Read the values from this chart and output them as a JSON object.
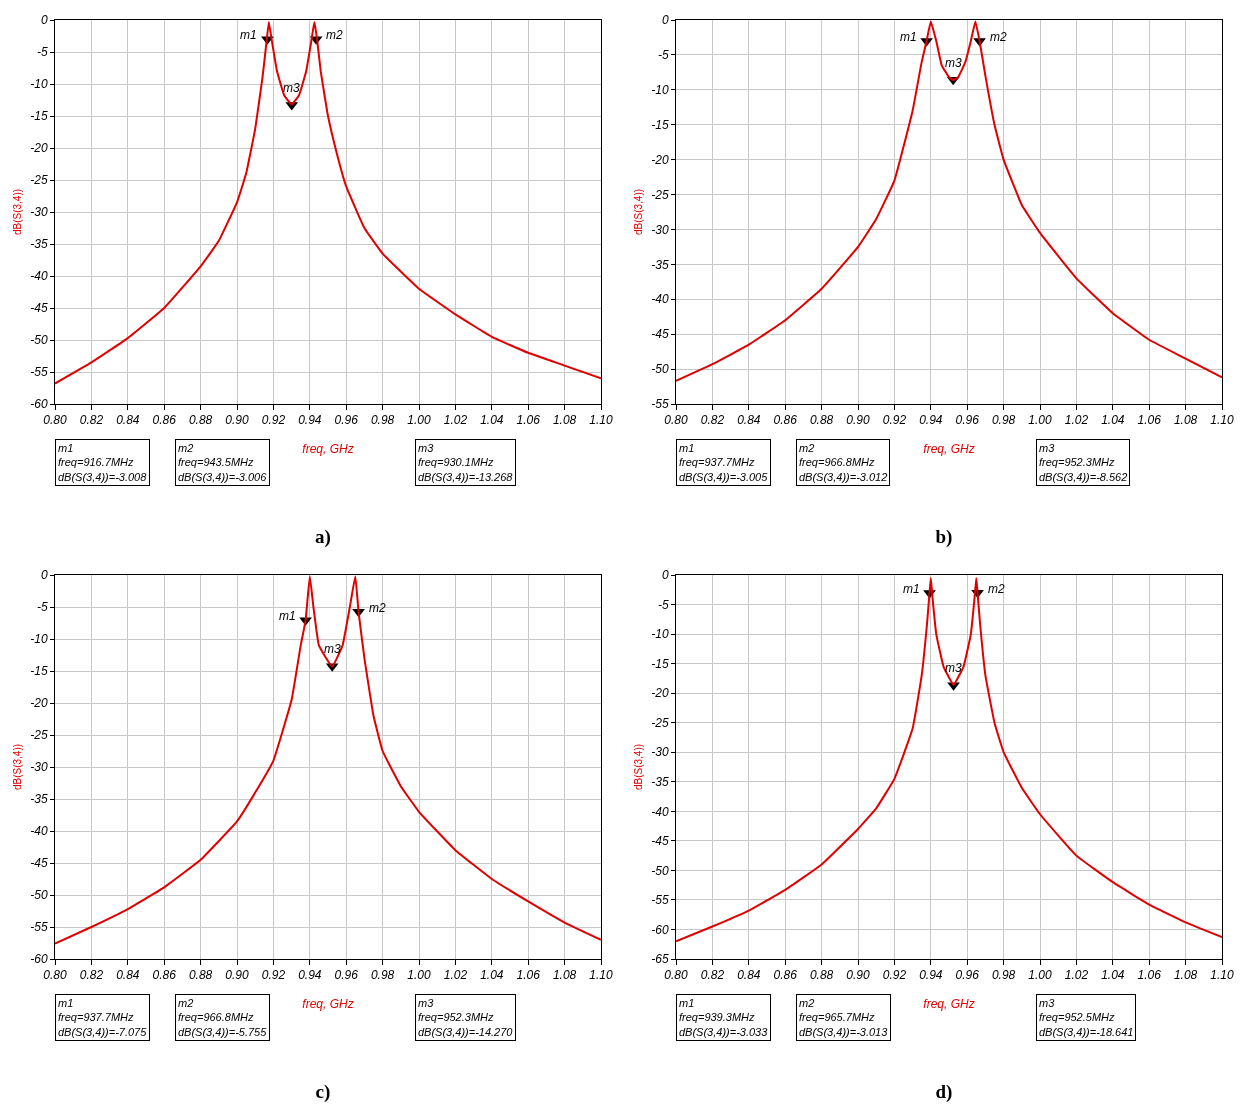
{
  "chart_data": [
    {
      "type": "line",
      "title": "a)",
      "xlabel": "freq, GHz",
      "ylabel": "dB(S(3,4))",
      "x": [
        0.8,
        0.82,
        0.84,
        0.86,
        0.88,
        0.89,
        0.9,
        0.905,
        0.91,
        0.914,
        0.916,
        0.9175,
        0.919,
        0.922,
        0.926,
        0.93,
        0.934,
        0.938,
        0.941,
        0.9425,
        0.944,
        0.946,
        0.95,
        0.955,
        0.96,
        0.97,
        0.98,
        1.0,
        1.02,
        1.04,
        1.06,
        1.08,
        1.1
      ],
      "series": [
        {
          "type": "scatter",
          "color": "#000000",
          "marker": "triangle",
          "x": [
            0.9167,
            0.9435,
            0.9301
          ],
          "values": [
            -3.008,
            -3.006,
            -13.268
          ]
        },
        {
          "color": "#e00000",
          "values": [
            -56.8,
            -53.5,
            -49.7,
            -45,
            -38.5,
            -34.5,
            -28.5,
            -24,
            -17,
            -9,
            -4,
            -0.3,
            -3,
            -8,
            -11.8,
            -13.2,
            -11.8,
            -8,
            -3,
            -0.3,
            -3,
            -8,
            -15,
            -21,
            -26,
            -32.5,
            -36.5,
            -42,
            -46,
            -49.5,
            -52,
            -54,
            -56
          ]
        }
      ],
      "xlim": [
        0.8,
        1.1
      ],
      "xticks": [
        {
          "value": 0.8,
          "label": "0.80"
        },
        {
          "value": 0.82,
          "label": "0.82"
        },
        {
          "value": 0.84,
          "label": "0.84"
        },
        {
          "value": 0.86,
          "label": "0.86"
        },
        {
          "value": 0.88,
          "label": "0.88"
        },
        {
          "value": 0.9,
          "label": "0.90"
        },
        {
          "value": 0.92,
          "label": "0.92"
        },
        {
          "value": 0.94,
          "label": "0.94"
        },
        {
          "value": 0.96,
          "label": "0.96"
        },
        {
          "value": 0.98,
          "label": "0.98"
        },
        {
          "value": 1.0,
          "label": "1.00"
        },
        {
          "value": 1.02,
          "label": "1.02"
        },
        {
          "value": 1.04,
          "label": "1.04"
        },
        {
          "value": 1.06,
          "label": "1.06"
        },
        {
          "value": 1.08,
          "label": "1.08"
        },
        {
          "value": 1.1,
          "label": "1.10"
        }
      ],
      "ylim": [
        -60,
        0
      ],
      "yticks": [
        0,
        -5,
        -10,
        -15,
        -20,
        -25,
        -30,
        -35,
        -40,
        -45,
        -50,
        -55,
        -60
      ],
      "grid": true,
      "annotations": [
        {
          "text": "m1",
          "x": 0.9167,
          "y": -3.008
        },
        {
          "text": "m2",
          "x": 0.9435,
          "y": -3.006
        },
        {
          "text": "m3",
          "x": 0.9301,
          "y": -13.268
        },
        "m1\nfreq=916.7MHz\ndB(S(3,4))=-3.008",
        "m2\nfreq=943.5MHz\ndB(S(3,4))=-3.006",
        "m3\nfreq=930.1MHz\ndB(S(3,4))=-13.268"
      ]
    },
    {
      "type": "line",
      "title": "b)",
      "xlabel": "freq, GHz",
      "ylabel": "dB(S(3,4))",
      "x": [
        0.8,
        0.82,
        0.84,
        0.86,
        0.88,
        0.9,
        0.91,
        0.92,
        0.93,
        0.935,
        0.9377,
        0.94,
        0.943,
        0.946,
        0.95,
        0.9523,
        0.955,
        0.959,
        0.962,
        0.9645,
        0.9668,
        0.97,
        0.975,
        0.98,
        0.99,
        1.0,
        1.02,
        1.04,
        1.06,
        1.08,
        1.1
      ],
      "series": [
        {
          "type": "scatter",
          "color": "#000000",
          "marker": "triangle",
          "x": [
            0.9377,
            0.9668,
            0.9523
          ],
          "values": [
            -3.005,
            -3.012,
            -8.562
          ]
        },
        {
          "color": "#e00000",
          "values": [
            -51.7,
            -49.3,
            -46.5,
            -43,
            -38.5,
            -32.5,
            -28.5,
            -23,
            -13,
            -6,
            -3,
            -0.2,
            -3,
            -6.5,
            -8.2,
            -8.6,
            -8.2,
            -6,
            -3,
            -0.2,
            -3,
            -8,
            -15,
            -20,
            -26.5,
            -30.5,
            -37,
            -42,
            -45.8,
            -48.5,
            -51.2
          ]
        }
      ],
      "xlim": [
        0.8,
        1.1
      ],
      "xticks": [
        {
          "value": 0.8,
          "label": "0.80"
        },
        {
          "value": 0.82,
          "label": "0.82"
        },
        {
          "value": 0.84,
          "label": "0.84"
        },
        {
          "value": 0.86,
          "label": "0.86"
        },
        {
          "value": 0.88,
          "label": "0.88"
        },
        {
          "value": 0.9,
          "label": "0.90"
        },
        {
          "value": 0.92,
          "label": "0.92"
        },
        {
          "value": 0.94,
          "label": "0.94"
        },
        {
          "value": 0.96,
          "label": "0.96"
        },
        {
          "value": 0.98,
          "label": "0.98"
        },
        {
          "value": 1.0,
          "label": "1.00"
        },
        {
          "value": 1.02,
          "label": "1.02"
        },
        {
          "value": 1.04,
          "label": "1.04"
        },
        {
          "value": 1.06,
          "label": "1.06"
        },
        {
          "value": 1.08,
          "label": "1.08"
        },
        {
          "value": 1.1,
          "label": "1.10"
        }
      ],
      "ylim": [
        -55,
        0
      ],
      "yticks": [
        0,
        -5,
        -10,
        -15,
        -20,
        -25,
        -30,
        -35,
        -40,
        -45,
        -50,
        -55
      ],
      "grid": true,
      "annotations": [
        {
          "text": "m1",
          "x": 0.9377,
          "y": -3.005
        },
        {
          "text": "m2",
          "x": 0.9668,
          "y": -3.012
        },
        {
          "text": "m3",
          "x": 0.9523,
          "y": -8.562
        },
        "m1\nfreq=937.7MHz\ndB(S(3,4))=-3.005",
        "m2\nfreq=966.8MHz\ndB(S(3,4))=-3.012",
        "m3\nfreq=952.3MHz\ndB(S(3,4))=-8.562"
      ]
    },
    {
      "type": "line",
      "title": "c)",
      "xlabel": "freq, GHz",
      "ylabel": "dB(S(3,4))",
      "x": [
        0.8,
        0.82,
        0.84,
        0.86,
        0.88,
        0.9,
        0.91,
        0.92,
        0.93,
        0.935,
        0.9377,
        0.94,
        0.942,
        0.945,
        0.9523,
        0.958,
        0.962,
        0.965,
        0.9668,
        0.97,
        0.975,
        0.98,
        0.99,
        1.0,
        1.02,
        1.04,
        1.06,
        1.08,
        1.1
      ],
      "series": [
        {
          "type": "scatter",
          "color": "#000000",
          "marker": "triangle",
          "x": [
            0.9377,
            0.9668,
            0.9523
          ],
          "values": [
            -7.075,
            -5.755,
            -14.27
          ]
        },
        {
          "color": "#e00000",
          "values": [
            -57.6,
            -55,
            -52.2,
            -48.8,
            -44.5,
            -38.5,
            -34,
            -29,
            -19.5,
            -11,
            -7.1,
            -0.2,
            -5,
            -11,
            -14.3,
            -11,
            -5,
            -0.2,
            -5.8,
            -13,
            -22,
            -27.5,
            -33,
            -37,
            -43,
            -47.5,
            -51,
            -54.3,
            -57
          ]
        }
      ],
      "xlim": [
        0.8,
        1.1
      ],
      "xticks": [
        {
          "value": 0.8,
          "label": "0.80"
        },
        {
          "value": 0.82,
          "label": "0.82"
        },
        {
          "value": 0.84,
          "label": "0.84"
        },
        {
          "value": 0.86,
          "label": "0.86"
        },
        {
          "value": 0.88,
          "label": "0.88"
        },
        {
          "value": 0.9,
          "label": "0.90"
        },
        {
          "value": 0.92,
          "label": "0.92"
        },
        {
          "value": 0.94,
          "label": "0.94"
        },
        {
          "value": 0.96,
          "label": "0.96"
        },
        {
          "value": 0.98,
          "label": "0.98"
        },
        {
          "value": 1.0,
          "label": "1.00"
        },
        {
          "value": 1.02,
          "label": "1.02"
        },
        {
          "value": 1.04,
          "label": "1.04"
        },
        {
          "value": 1.06,
          "label": "1.06"
        },
        {
          "value": 1.08,
          "label": "1.08"
        },
        {
          "value": 1.1,
          "label": "1.10"
        }
      ],
      "ylim": [
        -60,
        0
      ],
      "yticks": [
        0,
        -5,
        -10,
        -15,
        -20,
        -25,
        -30,
        -35,
        -40,
        -45,
        -50,
        -55,
        -60
      ],
      "grid": true,
      "annotations": [
        {
          "text": "m1",
          "x": 0.9377,
          "y": -7.075
        },
        {
          "text": "m2",
          "x": 0.9668,
          "y": -5.755
        },
        {
          "text": "m3",
          "x": 0.9523,
          "y": -14.27
        },
        "m1\nfreq=937.7MHz\ndB(S(3,4))=-7.075",
        "m2\nfreq=966.8MHz\ndB(S(3,4))=-5.755",
        "m3\nfreq=952.3MHz\ndB(S(3,4))=-14.270"
      ]
    },
    {
      "type": "line",
      "title": "d)",
      "xlabel": "freq, GHz",
      "ylabel": "dB(S(3,4))",
      "x": [
        0.8,
        0.82,
        0.84,
        0.86,
        0.88,
        0.9,
        0.91,
        0.92,
        0.93,
        0.935,
        0.938,
        0.9393,
        0.94,
        0.941,
        0.943,
        0.947,
        0.9525,
        0.958,
        0.962,
        0.964,
        0.965,
        0.9657,
        0.967,
        0.97,
        0.975,
        0.98,
        0.99,
        1.0,
        1.02,
        1.04,
        1.06,
        1.08,
        1.1
      ],
      "series": [
        {
          "type": "scatter",
          "color": "#000000",
          "marker": "triangle",
          "x": [
            0.9393,
            0.9657,
            0.9525
          ],
          "values": [
            -3.033,
            -3.013,
            -18.641
          ]
        },
        {
          "color": "#e00000",
          "values": [
            -62,
            -59.5,
            -56.8,
            -53.3,
            -49,
            -43,
            -39.5,
            -34.5,
            -26,
            -17,
            -8,
            -3,
            -0.5,
            -4,
            -10,
            -15.5,
            -18.6,
            -15.5,
            -10,
            -4,
            -0.5,
            -3,
            -8,
            -17,
            -25,
            -30,
            -36,
            -40.5,
            -47.5,
            -52,
            -55.8,
            -58.8,
            -61.3
          ]
        }
      ],
      "xlim": [
        0.8,
        1.1
      ],
      "xticks": [
        {
          "value": 0.8,
          "label": "0.80"
        },
        {
          "value": 0.82,
          "label": "0.82"
        },
        {
          "value": 0.84,
          "label": "0.84"
        },
        {
          "value": 0.86,
          "label": "0.86"
        },
        {
          "value": 0.88,
          "label": "0.88"
        },
        {
          "value": 0.9,
          "label": "0.90"
        },
        {
          "value": 0.92,
          "label": "0.92"
        },
        {
          "value": 0.94,
          "label": "0.94"
        },
        {
          "value": 0.96,
          "label": "0.96"
        },
        {
          "value": 0.98,
          "label": "0.98"
        },
        {
          "value": 1.0,
          "label": "1.00"
        },
        {
          "value": 1.02,
          "label": "1.02"
        },
        {
          "value": 1.04,
          "label": "1.04"
        },
        {
          "value": 1.06,
          "label": "1.06"
        },
        {
          "value": 1.08,
          "label": "1.08"
        },
        {
          "value": 1.1,
          "label": "1.10"
        }
      ],
      "ylim": [
        -65,
        0
      ],
      "yticks": [
        0,
        -5,
        -10,
        -15,
        -20,
        -25,
        -30,
        -35,
        -40,
        -45,
        -50,
        -55,
        -60,
        -65
      ],
      "grid": true,
      "annotations": [
        {
          "text": "m1",
          "x": 0.9393,
          "y": -3.033
        },
        {
          "text": "m2",
          "x": 0.9657,
          "y": -3.013
        },
        {
          "text": "m3",
          "x": 0.9525,
          "y": -18.641
        },
        "m1\nfreq=939.3MHz\ndB(S(3,4))=-3.033",
        "m2\nfreq=965.7MHz\ndB(S(3,4))=-3.013",
        "m3\nfreq=952.5MHz\ndB(S(3,4))=-18.641"
      ]
    }
  ]
}
